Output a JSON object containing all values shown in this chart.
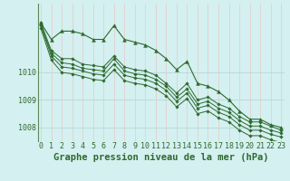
{
  "bg_color": "#d4f0f0",
  "grid_color_v": "#e8c8c8",
  "grid_color_h": "#b8d8d8",
  "line_color": "#2d6a2d",
  "xlabel": "Graphe pression niveau de la mer (hPa)",
  "xlabel_fontsize": 7.5,
  "tick_fontsize": 6,
  "ylim": [
    1007.5,
    1012.5
  ],
  "yticks": [
    1008,
    1009,
    1010
  ],
  "xlim": [
    -0.3,
    23.3
  ],
  "xticks": [
    0,
    1,
    2,
    3,
    4,
    5,
    6,
    7,
    8,
    9,
    10,
    11,
    12,
    13,
    14,
    15,
    16,
    17,
    18,
    19,
    20,
    21,
    22,
    23
  ],
  "series": [
    {
      "y": [
        1011.8,
        1011.2,
        1011.5,
        1011.5,
        1011.4,
        1011.2,
        1011.2,
        1011.7,
        1011.2,
        1011.1,
        1011.0,
        1010.8,
        1010.5,
        1010.1,
        1010.4,
        1009.6,
        1009.5,
        1009.3,
        1009.0,
        1008.6,
        1008.3,
        1008.3,
        1008.1,
        1008.0
      ],
      "marker": "^",
      "markersize": 2.8,
      "linewidth": 0.8,
      "zorder": 5
    },
    {
      "y": [
        1011.8,
        1010.8,
        1010.5,
        1010.5,
        1010.3,
        1010.25,
        1010.2,
        1010.6,
        1010.2,
        1010.1,
        1010.05,
        1009.9,
        1009.6,
        1009.25,
        1009.6,
        1009.0,
        1009.1,
        1008.85,
        1008.7,
        1008.4,
        1008.2,
        1008.2,
        1008.05,
        1007.9
      ],
      "marker": "D",
      "markersize": 1.8,
      "linewidth": 0.7,
      "zorder": 4
    },
    {
      "y": [
        1011.75,
        1010.7,
        1010.35,
        1010.3,
        1010.15,
        1010.1,
        1010.05,
        1010.5,
        1010.05,
        1009.95,
        1009.9,
        1009.75,
        1009.5,
        1009.1,
        1009.4,
        1008.85,
        1008.95,
        1008.7,
        1008.55,
        1008.25,
        1008.05,
        1008.05,
        1007.9,
        1007.8
      ],
      "marker": "D",
      "markersize": 1.8,
      "linewidth": 0.7,
      "zorder": 3
    },
    {
      "y": [
        1011.7,
        1010.6,
        1010.2,
        1010.15,
        1010.05,
        1009.95,
        1009.9,
        1010.3,
        1009.9,
        1009.8,
        1009.75,
        1009.6,
        1009.35,
        1008.95,
        1009.25,
        1008.7,
        1008.8,
        1008.55,
        1008.4,
        1008.1,
        1007.9,
        1007.9,
        1007.75,
        1007.65
      ],
      "marker": "D",
      "markersize": 1.8,
      "linewidth": 0.7,
      "zorder": 2
    },
    {
      "y": [
        1011.6,
        1010.45,
        1010.0,
        1009.95,
        1009.85,
        1009.75,
        1009.7,
        1010.1,
        1009.7,
        1009.6,
        1009.55,
        1009.4,
        1009.15,
        1008.75,
        1009.05,
        1008.5,
        1008.6,
        1008.35,
        1008.2,
        1007.9,
        1007.7,
        1007.7,
        1007.55,
        1007.45
      ],
      "marker": "D",
      "markersize": 1.8,
      "linewidth": 0.7,
      "zorder": 1
    }
  ]
}
